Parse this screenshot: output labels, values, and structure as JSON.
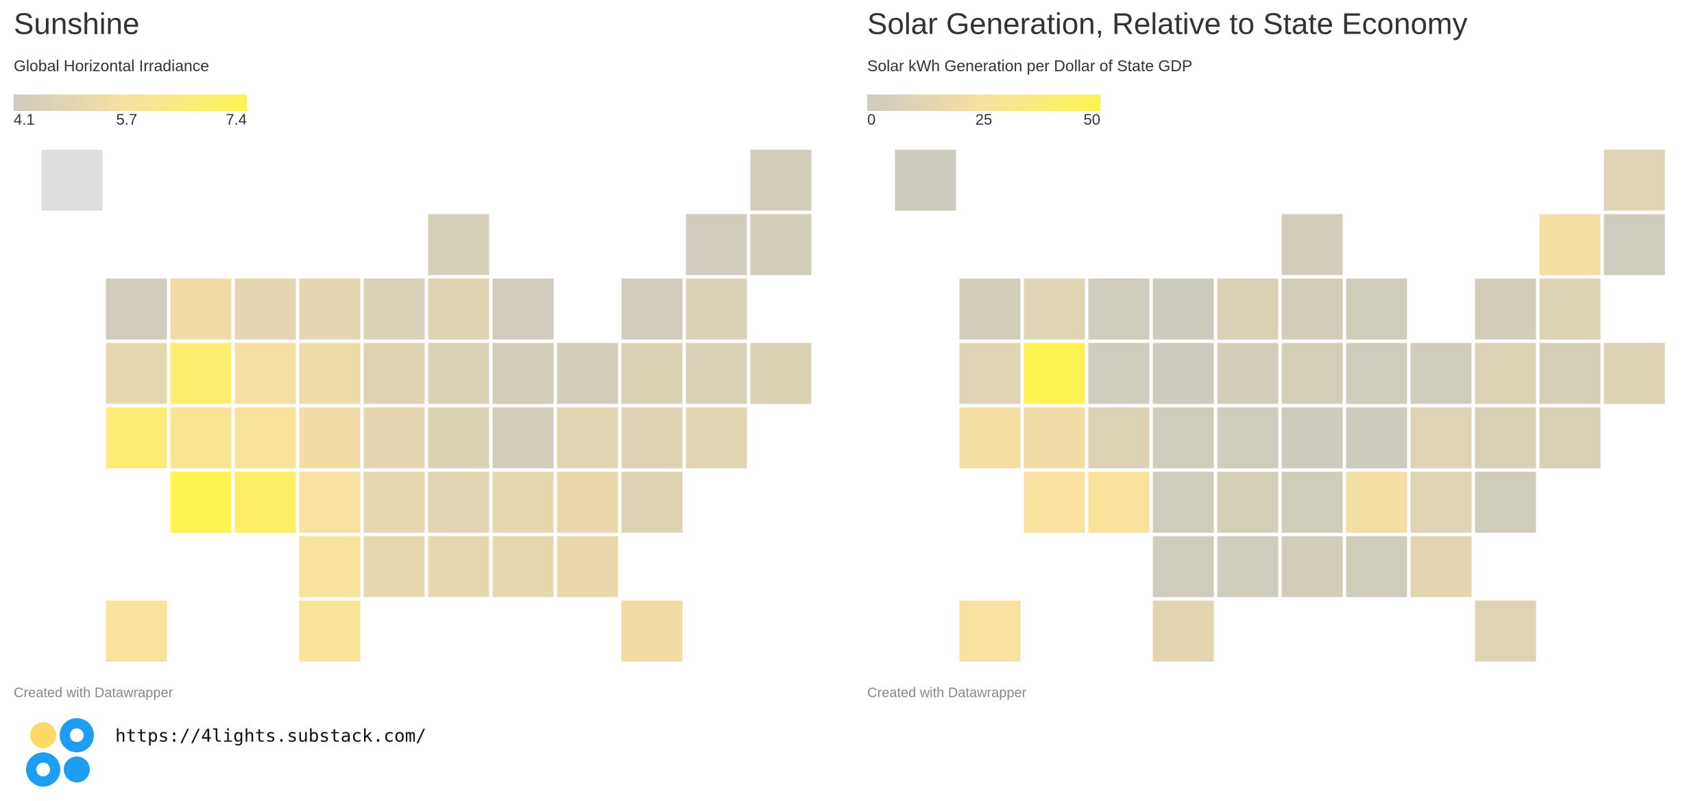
{
  "maps": [
    {
      "title": "Sunshine",
      "subtitle": "Global Horizontal Irradiance",
      "legend": {
        "ticks": [
          4.1,
          5.7,
          7.4
        ],
        "colors": [
          "#cdcabe",
          "#f8e1a1",
          "#fff352"
        ]
      },
      "missing_color": "#dddddd",
      "values": [
        null,
        4.3,
        4.4,
        4.2,
        4.3,
        4.2,
        5.4,
        4.9,
        4.9,
        4.5,
        4.7,
        4.2,
        4.2,
        4.5,
        5.0,
        6.8,
        5.6,
        5.3,
        4.7,
        4.5,
        4.3,
        4.3,
        4.6,
        4.5,
        4.6,
        6.6,
        6.0,
        5.9,
        5.4,
        4.9,
        4.6,
        4.3,
        4.8,
        4.7,
        4.8,
        7.4,
        7.0,
        5.7,
        5.0,
        4.8,
        5.0,
        5.1,
        4.7,
        5.8,
        5.0,
        5.0,
        5.0,
        5.1,
        5.8,
        5.9,
        5.4
      ],
      "credit": "Created with Datawrapper"
    },
    {
      "title": "Solar Generation, Relative to State Economy",
      "subtitle": "Solar kWh Generation per Dollar of State GDP",
      "legend": {
        "ticks": [
          0,
          25,
          50
        ],
        "colors": [
          "#cdcabe",
          "#f8e1a1",
          "#fff352"
        ]
      },
      "missing_color": "#dddddd",
      "values": [
        0,
        10,
        3,
        22,
        1,
        3,
        10,
        1,
        0,
        7,
        3,
        2,
        3,
        8,
        10,
        50,
        1,
        0,
        3,
        4,
        1,
        1,
        8,
        4,
        9,
        22,
        20,
        8,
        1,
        1,
        0,
        0,
        10,
        6,
        6,
        25,
        27,
        1,
        4,
        2,
        22,
        10,
        2,
        1,
        1,
        3,
        2,
        12,
        25,
        12,
        10
      ],
      "credit": "Created with Datawrapper"
    }
  ],
  "logo_url": "https://4lights.substack.com/"
}
